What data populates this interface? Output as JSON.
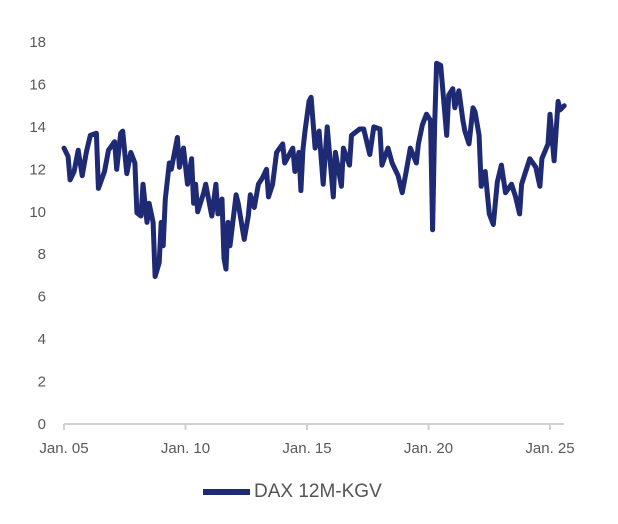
{
  "chart_data": {
    "type": "line",
    "title": "",
    "xlabel": "",
    "ylabel": "",
    "ylim": [
      0,
      18
    ],
    "yticks": [
      "0",
      "2",
      "4",
      "6",
      "8",
      "10",
      "12",
      "14",
      "16",
      "18"
    ],
    "xlim": [
      "2005-01",
      "2025-08"
    ],
    "xticks": [
      {
        "date": "2005-01",
        "label": "Jan. 05"
      },
      {
        "date": "2010-01",
        "label": "Jan. 10"
      },
      {
        "date": "2015-01",
        "label": "Jan. 15"
      },
      {
        "date": "2020-01",
        "label": "Jan. 20"
      },
      {
        "date": "2025-01",
        "label": "Jan. 25"
      }
    ],
    "grid": false,
    "legend_position": "bottom",
    "series": [
      {
        "name": "DAX 12M-KGV",
        "color": "#1f2a74",
        "points": [
          [
            "2005-01",
            13.0
          ],
          [
            "2005-03",
            12.6
          ],
          [
            "2005-04",
            11.5
          ],
          [
            "2005-06",
            11.9
          ],
          [
            "2005-08",
            12.9
          ],
          [
            "2005-10",
            11.7
          ],
          [
            "2005-12",
            12.8
          ],
          [
            "2006-02",
            13.6
          ],
          [
            "2006-05",
            13.7
          ],
          [
            "2006-06",
            11.1
          ],
          [
            "2006-09",
            11.9
          ],
          [
            "2006-11",
            12.9
          ],
          [
            "2007-02",
            13.3
          ],
          [
            "2007-03",
            12.0
          ],
          [
            "2007-05",
            13.7
          ],
          [
            "2007-06",
            13.8
          ],
          [
            "2007-08",
            11.8
          ],
          [
            "2007-10",
            12.8
          ],
          [
            "2007-12",
            12.3
          ],
          [
            "2008-01",
            9.95
          ],
          [
            "2008-03",
            9.8
          ],
          [
            "2008-04",
            11.3
          ],
          [
            "2008-06",
            9.5
          ],
          [
            "2008-07",
            10.4
          ],
          [
            "2008-09",
            9.5
          ],
          [
            "2008-10",
            6.95
          ],
          [
            "2008-12",
            7.6
          ],
          [
            "2009-01",
            9.5
          ],
          [
            "2009-02",
            8.4
          ],
          [
            "2009-03",
            10.6
          ],
          [
            "2009-05",
            12.3
          ],
          [
            "2009-06",
            12.0
          ],
          [
            "2009-09",
            13.5
          ],
          [
            "2009-10",
            12.1
          ],
          [
            "2009-12",
            13.0
          ],
          [
            "2010-02",
            11.3
          ],
          [
            "2010-04",
            12.5
          ],
          [
            "2010-05",
            10.4
          ],
          [
            "2010-06",
            11.3
          ],
          [
            "2010-07",
            10.0
          ],
          [
            "2010-10",
            10.9
          ],
          [
            "2010-11",
            11.3
          ],
          [
            "2011-02",
            9.8
          ],
          [
            "2011-04",
            11.3
          ],
          [
            "2011-05",
            9.9
          ],
          [
            "2011-07",
            10.6
          ],
          [
            "2011-08",
            7.8
          ],
          [
            "2011-09",
            7.3
          ],
          [
            "2011-10",
            9.5
          ],
          [
            "2011-11",
            8.4
          ],
          [
            "2012-02",
            10.8
          ],
          [
            "2012-03",
            10.4
          ],
          [
            "2012-06",
            8.7
          ],
          [
            "2012-08",
            9.8
          ],
          [
            "2012-09",
            10.8
          ],
          [
            "2012-11",
            10.2
          ],
          [
            "2013-01",
            11.3
          ],
          [
            "2013-03",
            11.6
          ],
          [
            "2013-05",
            12.0
          ],
          [
            "2013-06",
            10.7
          ],
          [
            "2013-08",
            11.3
          ],
          [
            "2013-10",
            12.8
          ],
          [
            "2014-01",
            13.2
          ],
          [
            "2014-02",
            12.3
          ],
          [
            "2014-06",
            13.0
          ],
          [
            "2014-07",
            11.9
          ],
          [
            "2014-09",
            12.8
          ],
          [
            "2014-10",
            11.0
          ],
          [
            "2014-11",
            12.9
          ],
          [
            "2014-12",
            13.8
          ],
          [
            "2015-02",
            15.2
          ],
          [
            "2015-03",
            15.4
          ],
          [
            "2015-05",
            13.0
          ],
          [
            "2015-07",
            13.8
          ],
          [
            "2015-09",
            11.3
          ],
          [
            "2015-11",
            14.0
          ],
          [
            "2016-02",
            10.7
          ],
          [
            "2016-03",
            12.8
          ],
          [
            "2016-06",
            11.2
          ],
          [
            "2016-07",
            13.0
          ],
          [
            "2016-10",
            12.2
          ],
          [
            "2016-11",
            13.6
          ],
          [
            "2017-03",
            13.9
          ],
          [
            "2017-05",
            13.9
          ],
          [
            "2017-08",
            12.7
          ],
          [
            "2017-10",
            14.0
          ],
          [
            "2018-01",
            13.9
          ],
          [
            "2018-02",
            12.2
          ],
          [
            "2018-05",
            13.0
          ],
          [
            "2018-07",
            12.3
          ],
          [
            "2018-10",
            11.7
          ],
          [
            "2018-12",
            10.9
          ],
          [
            "2019-02",
            11.9
          ],
          [
            "2019-04",
            13.0
          ],
          [
            "2019-07",
            12.3
          ],
          [
            "2019-08",
            13.2
          ],
          [
            "2019-10",
            14.1
          ],
          [
            "2019-12",
            14.6
          ],
          [
            "2020-02",
            14.3
          ],
          [
            "2020-03",
            9.15
          ],
          [
            "2020-04",
            14.0
          ],
          [
            "2020-05",
            17.0
          ],
          [
            "2020-07",
            16.9
          ],
          [
            "2020-08",
            15.8
          ],
          [
            "2020-10",
            13.6
          ],
          [
            "2020-11",
            15.5
          ],
          [
            "2021-01",
            15.8
          ],
          [
            "2021-02",
            14.9
          ],
          [
            "2021-04",
            15.7
          ],
          [
            "2021-06",
            14.3
          ],
          [
            "2021-07",
            13.8
          ],
          [
            "2021-09",
            13.2
          ],
          [
            "2021-11",
            14.9
          ],
          [
            "2021-12",
            14.7
          ],
          [
            "2022-02",
            13.6
          ],
          [
            "2022-03",
            11.2
          ],
          [
            "2022-05",
            11.9
          ],
          [
            "2022-07",
            9.9
          ],
          [
            "2022-09",
            9.4
          ],
          [
            "2022-11",
            11.4
          ],
          [
            "2023-01",
            12.2
          ],
          [
            "2023-03",
            10.9
          ],
          [
            "2023-06",
            11.3
          ],
          [
            "2023-08",
            10.7
          ],
          [
            "2023-10",
            9.9
          ],
          [
            "2023-11",
            11.3
          ],
          [
            "2024-03",
            12.5
          ],
          [
            "2024-06",
            12.1
          ],
          [
            "2024-08",
            11.2
          ],
          [
            "2024-09",
            12.5
          ],
          [
            "2024-12",
            13.2
          ],
          [
            "2025-01",
            14.6
          ],
          [
            "2025-03",
            12.4
          ],
          [
            "2025-05",
            15.2
          ],
          [
            "2025-06",
            14.8
          ],
          [
            "2025-08",
            15.0
          ]
        ]
      }
    ]
  }
}
